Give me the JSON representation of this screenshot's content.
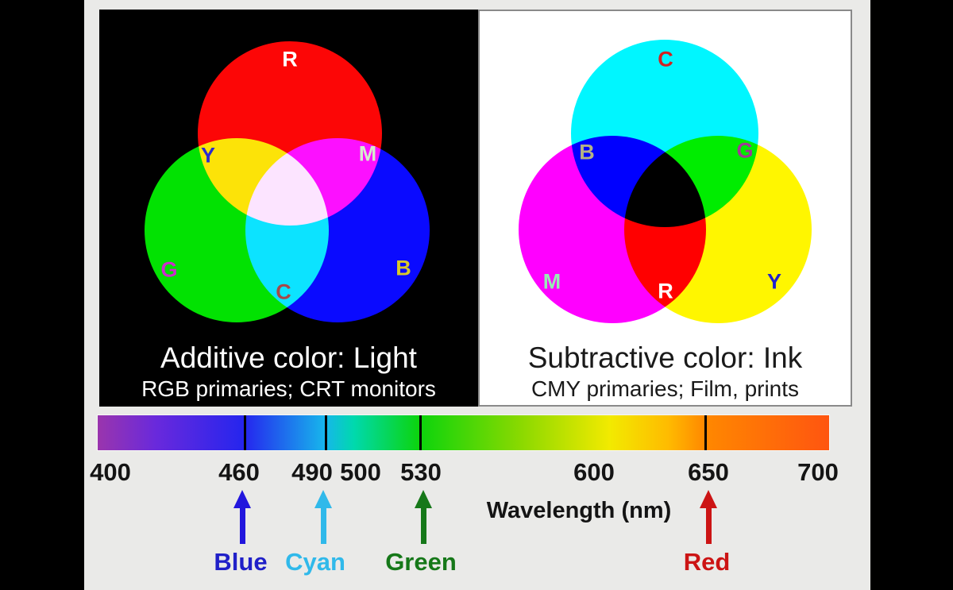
{
  "scene": {
    "outer_background": "#000000",
    "canvas_background": "#eaeae8"
  },
  "panels": {
    "additive": {
      "title": "Additive color: Light",
      "subtitle": "RGB primaries; CRT monitors",
      "background": "#000000",
      "text_color": "#ffffff",
      "circles": [
        {
          "name": "red-circle",
          "color": "#fc0606"
        },
        {
          "name": "green-circle",
          "color": "#02e202"
        },
        {
          "name": "blue-circle",
          "color": "#0a0aff"
        }
      ],
      "labels": [
        {
          "text": "R",
          "color": "#ffffff"
        },
        {
          "text": "Y",
          "color": "#2a2ad0"
        },
        {
          "text": "M",
          "color": "#d6eccd"
        },
        {
          "text": "G",
          "color": "#cc2ccc"
        },
        {
          "text": "C",
          "color": "#a84848"
        },
        {
          "text": "B",
          "color": "#d8c828"
        }
      ]
    },
    "subtractive": {
      "title": "Subtractive color: Ink",
      "subtitle": "CMY primaries; Film, prints",
      "background": "#ffffff",
      "border_color": "#8a8a8a",
      "text_color": "#1a1a1a",
      "circles": [
        {
          "name": "cyan-circle",
          "color": "#00f6ff"
        },
        {
          "name": "magenta-circle",
          "color": "#ff00ff"
        },
        {
          "name": "yellow-circle",
          "color": "#fff600"
        }
      ],
      "labels": [
        {
          "text": "C",
          "color": "#d42020"
        },
        {
          "text": "B",
          "color": "#b4b284"
        },
        {
          "text": "G",
          "color": "#a03896"
        },
        {
          "text": "M",
          "color": "#96eeb4"
        },
        {
          "text": "R",
          "color": "#ffffff"
        },
        {
          "text": "Y",
          "color": "#2222cc"
        }
      ]
    }
  },
  "spectrum": {
    "axis_title": "Wavelength (nm)",
    "axis_labels": [
      "400",
      "460",
      "490",
      "500",
      "530",
      "600",
      "650",
      "700"
    ],
    "ticks": [
      {
        "wavelength": "460",
        "pct": 20.0
      },
      {
        "wavelength": "490",
        "pct": 31.1
      },
      {
        "wavelength": "530",
        "pct": 44.0
      },
      {
        "wavelength": "650",
        "pct": 83.0
      }
    ],
    "gradient_stops": [
      {
        "pct": 0,
        "color": "#9a35ad"
      },
      {
        "pct": 8,
        "color": "#6929dc"
      },
      {
        "pct": 20,
        "color": "#2525ee"
      },
      {
        "pct": 31,
        "color": "#17b5ec"
      },
      {
        "pct": 35,
        "color": "#00d9ae"
      },
      {
        "pct": 44,
        "color": "#0cd40c"
      },
      {
        "pct": 58,
        "color": "#8cd900"
      },
      {
        "pct": 70,
        "color": "#f2ea00"
      },
      {
        "pct": 78,
        "color": "#ffbb00"
      },
      {
        "pct": 83,
        "color": "#ff8800"
      },
      {
        "pct": 100,
        "color": "#ff5510"
      }
    ],
    "arrows": [
      {
        "label": "Blue",
        "wavelength": "460",
        "color": "#2216dd",
        "label_color": "#2020c8"
      },
      {
        "label": "Cyan",
        "wavelength": "490",
        "color": "#30b9ea",
        "label_color": "#30b9ea"
      },
      {
        "label": "Green",
        "wavelength": "530",
        "color": "#167819",
        "label_color": "#167819"
      },
      {
        "label": "Red",
        "wavelength": "650",
        "color": "#cc1414",
        "label_color": "#cc1414"
      }
    ]
  }
}
